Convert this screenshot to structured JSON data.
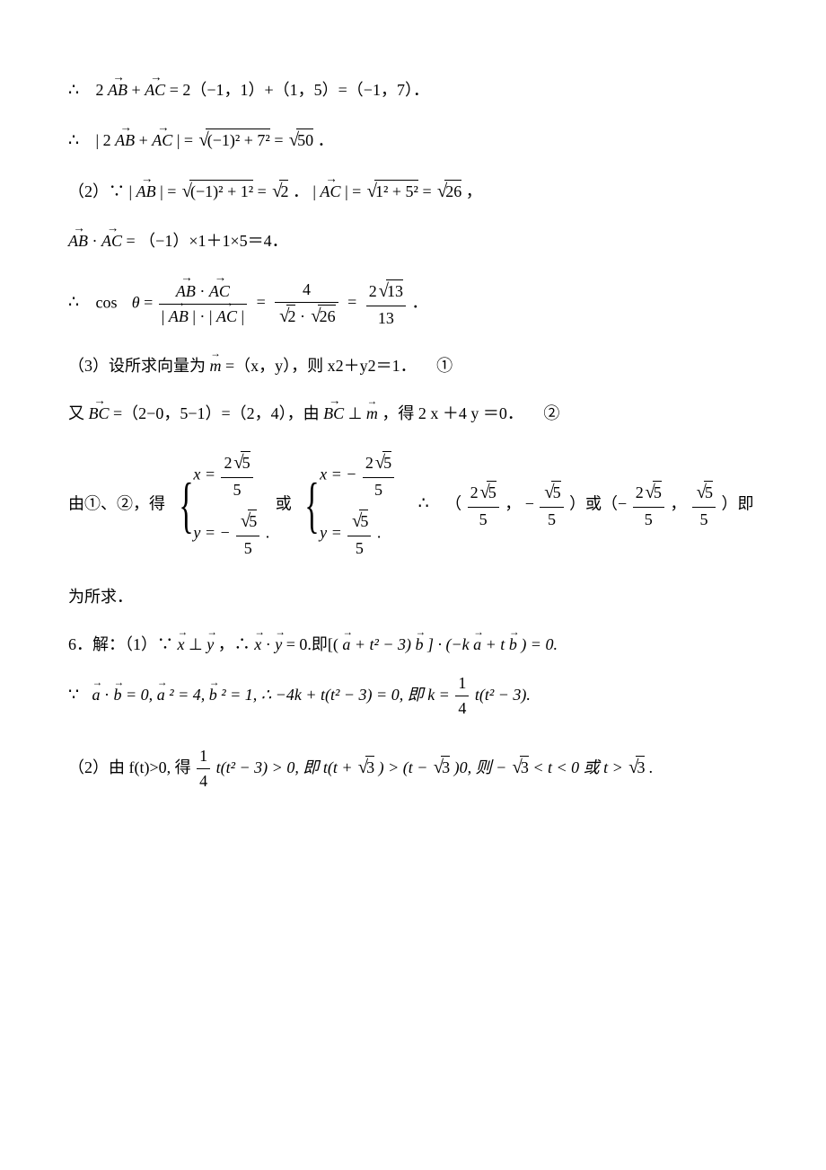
{
  "lines": {
    "l1_a": "∴",
    "l1_b": "2",
    "l1_v1": "AB",
    "l1_c": " + ",
    "l1_v2": "AC",
    "l1_d": " = 2（−1，1）+（1，5）=（−1，7）．",
    "l2_a": "∴",
    "l2_b": " | 2",
    "l2_v1": "AB",
    "l2_c": " + ",
    "l2_v2": "AC",
    "l2_d": " | = ",
    "l2_sqrt1": "(−1)² + 7²",
    "l2_e": " = ",
    "l2_sqrt2": "50",
    "l2_f": " ．",
    "l3_a": "（2）∵",
    "l3_b": " | ",
    "l3_v1": "AB",
    "l3_c": " | = ",
    "l3_sqrt1": "(−1)² + 1²",
    "l3_d": " = ",
    "l3_sqrt2": "2",
    "l3_e": " ．  | ",
    "l3_v2": "AC",
    "l3_f": " | = ",
    "l3_sqrt3": "1² + 5²",
    "l3_g": "  = ",
    "l3_sqrt4": "26",
    "l3_h": " ，",
    "l4_v1": "AB",
    "l4_a": "  ·  ",
    "l4_v2": "AC",
    "l4_b": " = （−1）×1＋1×5＝4．",
    "l5_a": "∴",
    "l5_b": "cos",
    "l5_theta": "θ",
    "l5_eq": " = ",
    "l5_f1n_v1": "AB",
    "l5_f1n_mid": " · ",
    "l5_f1n_v2": "AC",
    "l5_f1d_a": "| ",
    "l5_f1d_v1": "AB",
    "l5_f1d_b": " | · | ",
    "l5_f1d_v2": "AC",
    "l5_f1d_c": " |",
    "l5_f2n": "4",
    "l5_f2d_s1": "2",
    "l5_f2d_mid": " · ",
    "l5_f2d_s2": "26",
    "l5_f3n_a": "2",
    "l5_f3n_s": "13",
    "l5_f3d": "13",
    "l5_end": " ．",
    "l6_a": "（3）设所求向量为",
    "l6_v": "m",
    "l6_b": " =（x，y），则 x2＋y2＝1．",
    "l6_circ": "①",
    "l7_a": "又   ",
    "l7_v1": "BC",
    "l7_b": " =（2−0，5−1）=（2，4），由",
    "l7_v2": "BC",
    "l7_c": " ⊥ ",
    "l7_v3": "m",
    "l7_d": " ，得 2  x  ＋4  y  ＝0．",
    "l7_circ": "②",
    "l8_a": "由①、②，得",
    "l8_sys1_x_lhs": "x = ",
    "l8_sys1_x_num_a": "2",
    "l8_sys1_x_num_s": "5",
    "l8_sys1_x_den": "5",
    "l8_sys1_y_lhs": "y = −",
    "l8_sys1_y_num_s": "5",
    "l8_sys1_y_den": "5",
    "l8_or": " 或 ",
    "l8_sys2_x_lhs": "x = −",
    "l8_sys2_y_lhs": "y = ",
    "l8_therefore": "∴",
    "l8_paren1_a": "（",
    "l8_paren1_c": "， −",
    "l8_paren1_e": "）或（−",
    "l8_paren1_g": "， ",
    "l8_paren1_i": "）即",
    "l8b": "为所求．",
    "l9_a": "6．解：（1）∵",
    "l9_vx": "x",
    "l9_b": " ⊥ ",
    "l9_vy": "y",
    "l9_c": "，∴",
    "l9_d": " · ",
    "l9_e": " = 0.即[(",
    "l9_va": "a",
    "l9_f": " + t² − 3)",
    "l9_vb": "b",
    "l9_g": "] · (−k",
    "l9_h": " + t",
    "l9_i": ") = 0.",
    "l10_a": "∵",
    "l10_va": "a",
    "l10_b": " · ",
    "l10_vb": "b",
    "l10_c": " = 0, ",
    "l10_d": "² = 4, ",
    "l10_e": "² = 1, ∴ −4k + t(t² − 3) = 0, 即 k = ",
    "l10_fn": "1",
    "l10_fd": "4",
    "l10_f": " t(t² − 3).",
    "l11_a": "（2）由 f(t)>0, 得 ",
    "l11_fn": "1",
    "l11_fd": "4",
    "l11_b": " t(t² − 3) > 0, 即 t(t + ",
    "l11_s1": "3",
    "l11_c": ") > (t − ",
    "l11_s2": "3",
    "l11_d": ")0, 则 −",
    "l11_s3": "3",
    "l11_e": " < t < 0 或 t > ",
    "l11_s4": "3",
    "l11_f": "."
  },
  "colors": {
    "text": "#000000",
    "bg": "#ffffff"
  },
  "fontsize_pt": 13
}
